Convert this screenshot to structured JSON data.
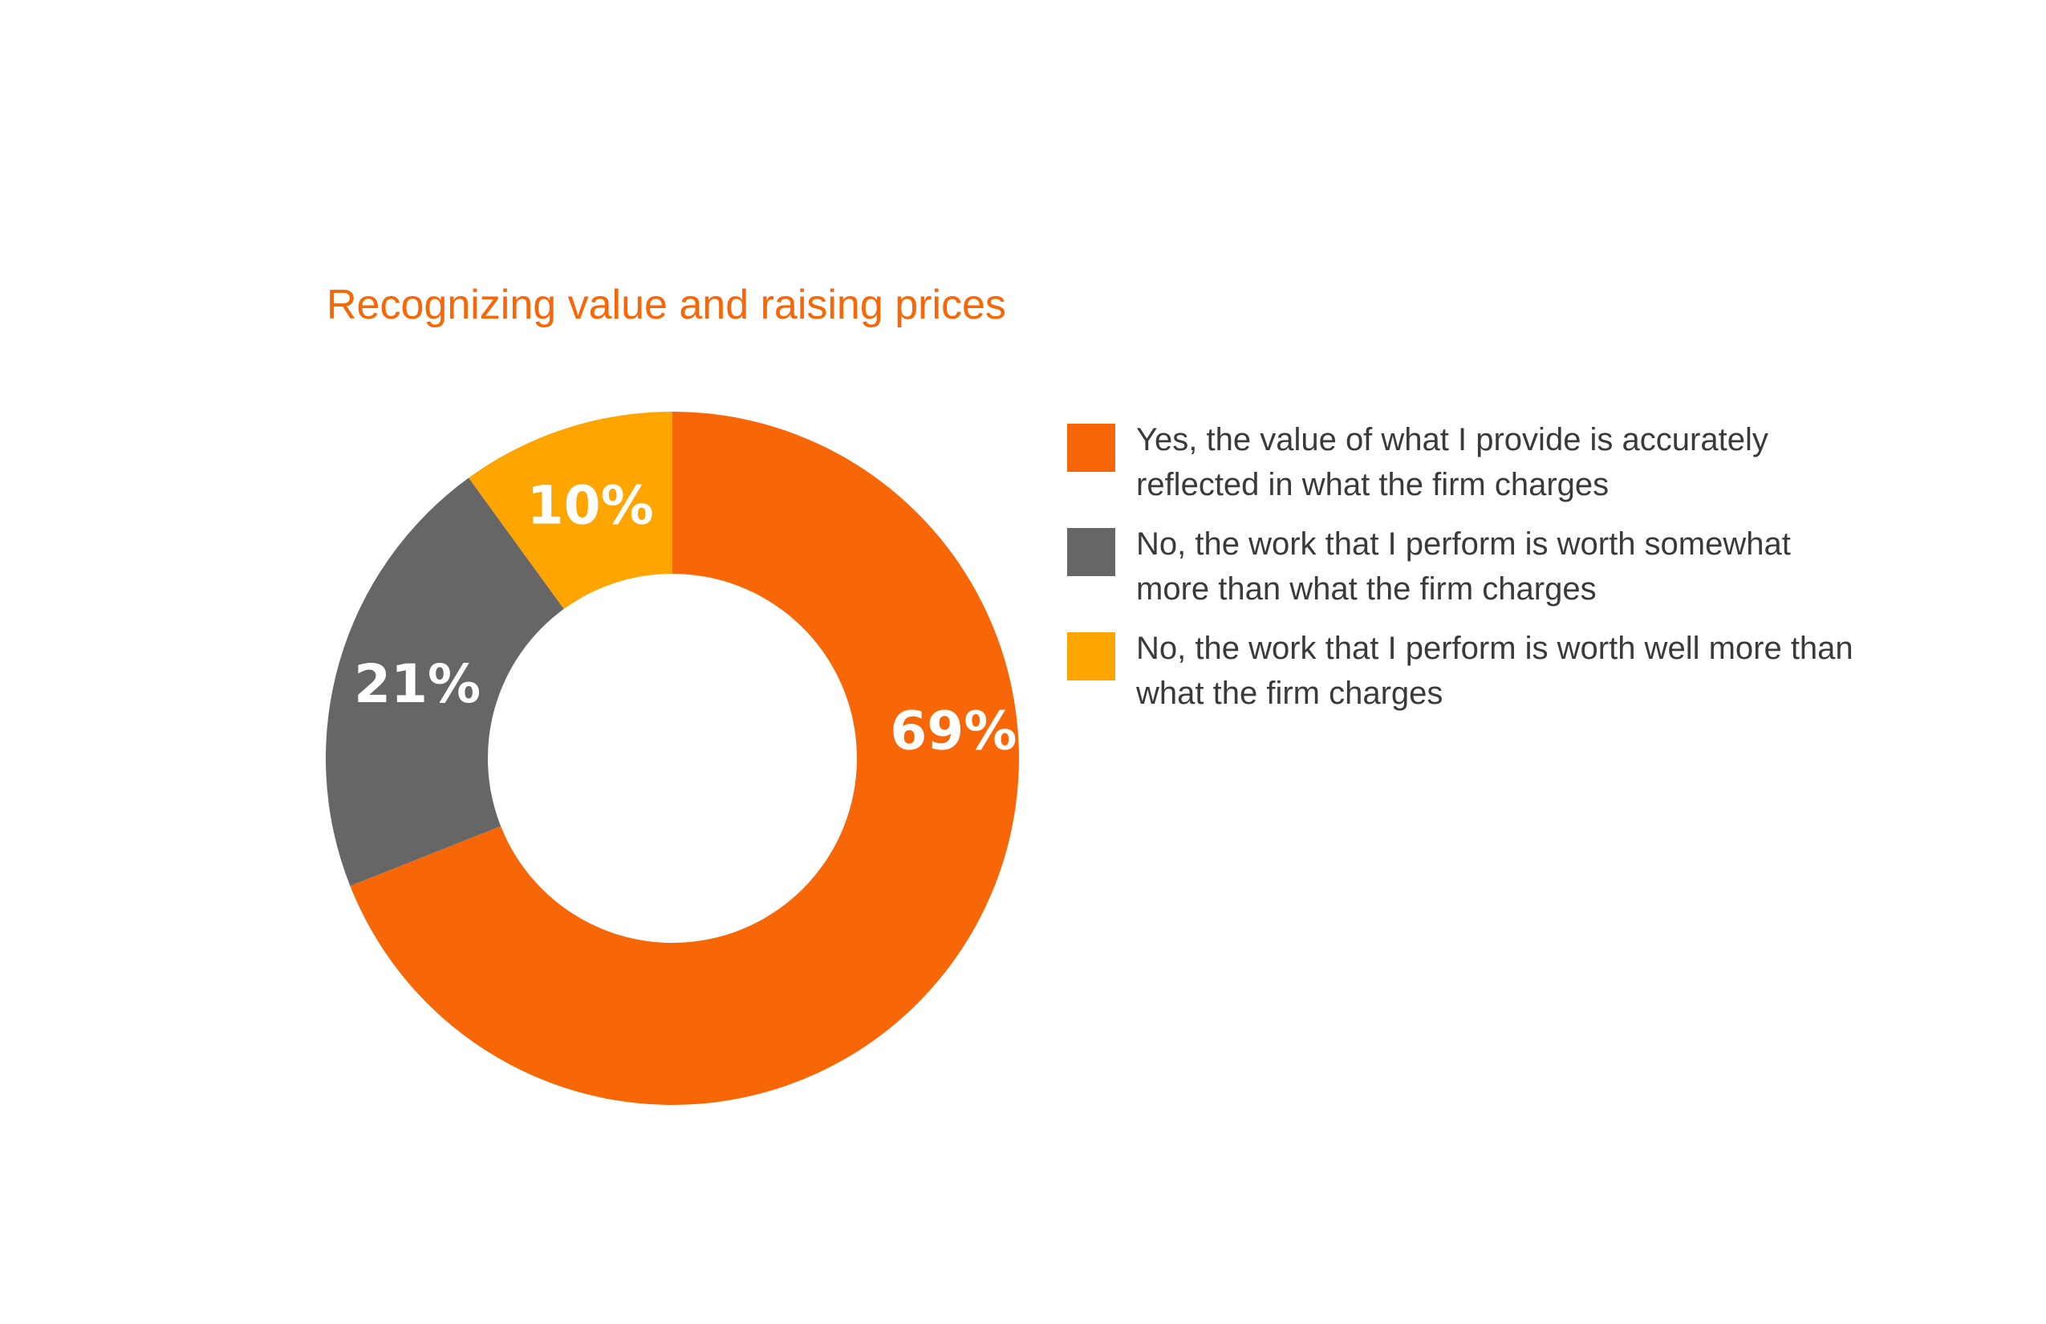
{
  "chart_data": {
    "type": "pie",
    "title": "Recognizing value and raising prices",
    "slices": [
      {
        "label": "Yes, the value of what I provide is accurately reflected in what the firm charges",
        "value": 69,
        "display": "69%",
        "color": "#f76707"
      },
      {
        "label": "No, the work that I perform is worth somewhat more than what the firm charges",
        "value": 21,
        "display": "21%",
        "color": "#666666"
      },
      {
        "label": "No, the work that I perform is worth well more than what the firm charges",
        "value": 10,
        "display": "10%",
        "color": "#ffa500"
      }
    ],
    "legend_position": "right",
    "style": "donut"
  }
}
